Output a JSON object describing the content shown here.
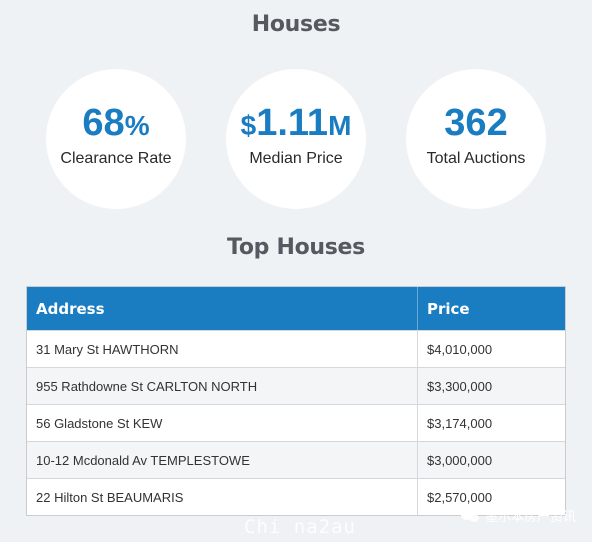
{
  "section_title": "Houses",
  "stats": [
    {
      "value": "68",
      "unit": "%",
      "prefix": "",
      "label": "Clearance Rate"
    },
    {
      "value": "1.11",
      "unit": "M",
      "prefix": "$",
      "label": "Median Price"
    },
    {
      "value": "362",
      "unit": "",
      "prefix": "",
      "label": "Total Auctions"
    }
  ],
  "top_title": "Top Houses",
  "table": {
    "headers": {
      "address": "Address",
      "price": "Price"
    },
    "rows": [
      {
        "address": "31 Mary St HAWTHORN",
        "price": "$4,010,000"
      },
      {
        "address": "955 Rathdowne St CARLTON NORTH",
        "price": "$3,300,000"
      },
      {
        "address": "56 Gladstone St KEW",
        "price": "$3,174,000"
      },
      {
        "address": "10-12 Mcdonald Av TEMPLESTOWE",
        "price": "$3,000,000"
      },
      {
        "address": "22 Hilton St BEAUMARIS",
        "price": "$2,570,000"
      }
    ]
  },
  "watermark": {
    "left": "Chi na2au",
    "right": "墨尔本房产资讯",
    "icon": "wechat-icon"
  },
  "colors": {
    "accent": "#1a7cc1",
    "background": "#eef2f5"
  }
}
